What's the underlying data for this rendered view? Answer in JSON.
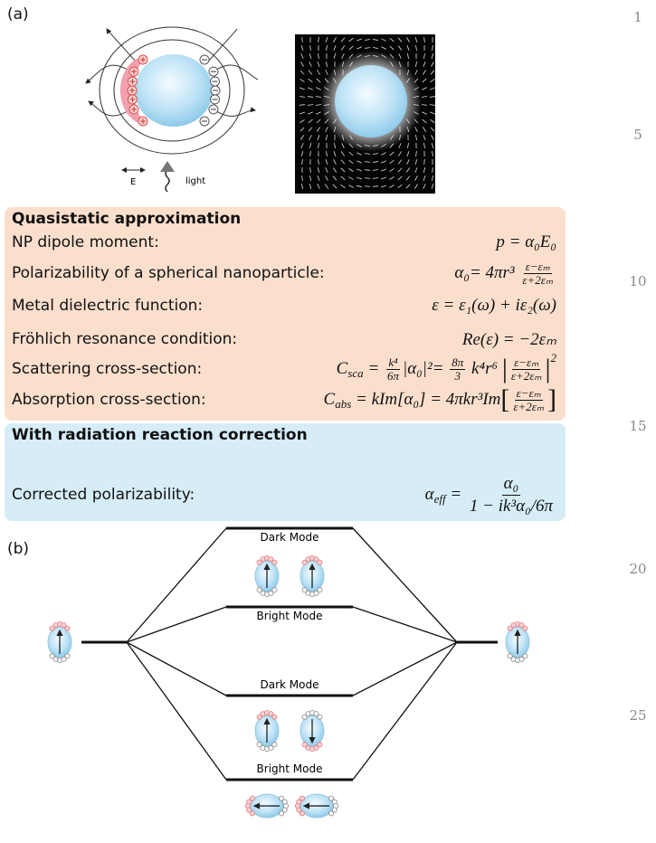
{
  "panel_a": {
    "label": "(a)",
    "e_label": "E",
    "light_label": "light"
  },
  "quasistatic": {
    "title": "Quasistatic approximation",
    "rows": [
      {
        "label": "NP dipole moment:",
        "formula": [
          {
            "t": "p = α₀E₀"
          }
        ]
      },
      {
        "label": "Polarizability of a spherical nanoparticle:",
        "formula": [
          {
            "t": "α₀= 4πr³ "
          },
          {
            "num": "ε−εₘ",
            "den": "ε+2εₘ"
          }
        ]
      },
      {
        "label": "Metal dielectric function:",
        "formula": [
          {
            "t": "ε = ε₁(ω) + iε₂(ω)"
          }
        ]
      },
      {
        "label": "Fröhlich resonance condition:",
        "formula": [
          {
            "t": "Re(ε) = −2εₘ"
          }
        ]
      },
      {
        "label": "Scattering cross-section:",
        "formula": [
          {
            "t": "C"
          },
          {
            "sub": "sca"
          },
          {
            "t": " = "
          },
          {
            "num": "k⁴",
            "den": "6π"
          },
          {
            "t": "|α₀|²= "
          },
          {
            "num": "8π",
            "den": "3"
          },
          {
            "t": " k⁴r⁶ "
          },
          {
            "big": "|"
          },
          {
            "num": "ε−εₘ",
            "den": "ε+2εₘ"
          },
          {
            "big": "|"
          },
          {
            "sup": "2"
          }
        ]
      },
      {
        "label": "Absorption cross-section:",
        "formula": [
          {
            "t": "C"
          },
          {
            "sub": "abs"
          },
          {
            "t": " = kIm[α₀] = 4πkr³Im"
          },
          {
            "big": "["
          },
          {
            "num": "ε−εₘ",
            "den": "ε+2εₘ"
          },
          {
            "big": "]"
          }
        ]
      }
    ]
  },
  "radiation": {
    "title": "With radiation reaction correction",
    "rows": [
      {
        "label": "Corrected polarizability:",
        "formula": [
          {
            "t": "α"
          },
          {
            "sub": "eff"
          },
          {
            "t": " = "
          },
          {
            "num": "α₀",
            "den": "1 − ik³α₀/6π"
          }
        ]
      }
    ]
  },
  "panel_b": {
    "label": "(b)",
    "levels": [
      "Dark Mode",
      "Bright Mode",
      "Dark Mode",
      "Bright Mode"
    ]
  },
  "line_numbers": [
    1,
    5,
    10,
    15,
    20,
    25
  ]
}
